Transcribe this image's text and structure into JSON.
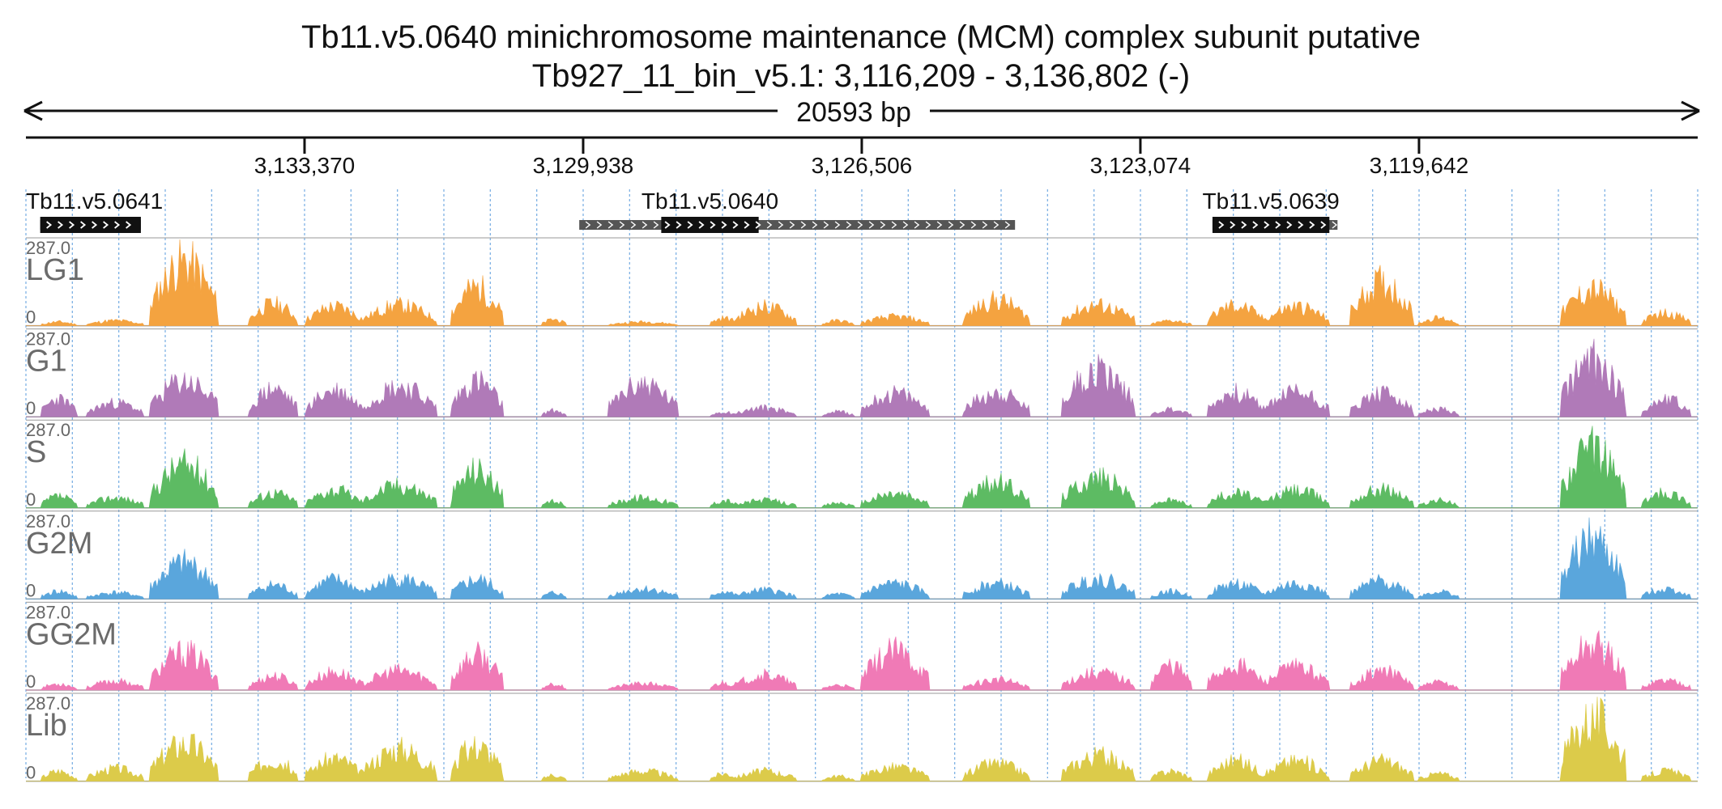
{
  "chart_data": {
    "type": "area",
    "title": "Tb11.v5.0640  minichromosome maintenance (MCM) complex subunit  putative",
    "subtitle": "Tb927_11_bin_v5.1: 3,116,209 - 3,136,802 (-)",
    "span_label": "20593 bp",
    "region": {
      "chrom": "Tb927_11_bin_v5.1",
      "start": 3116209,
      "end": 3136802,
      "strand": "-"
    },
    "x_ticks": [
      "3,133,370",
      "3,129,938",
      "3,126,506",
      "3,123,074",
      "3,119,642"
    ],
    "genes": [
      {
        "name": "Tb11.v5.0641",
        "start": 3135386,
        "end": 3136626,
        "utr_start": 3135386,
        "utr_end": 3136626
      },
      {
        "name": "Tb11.v5.0640",
        "start": 3127776,
        "end": 3128976,
        "utr_start": 3124618,
        "utr_end": 3129986
      },
      {
        "name": "Tb11.v5.0639",
        "start": 3120746,
        "end": 3122186,
        "utr_start": 3120646,
        "utr_end": 3122186
      }
    ],
    "tracks": [
      {
        "name": "LG1",
        "max": "287.0",
        "min": "0",
        "color": "#f4a340",
        "seed": 11
      },
      {
        "name": "G1",
        "max": "287.0",
        "min": "0",
        "color": "#b07ab8",
        "seed": 23
      },
      {
        "name": "S",
        "max": "287.0",
        "min": "0",
        "color": "#5dbb63",
        "seed": 37
      },
      {
        "name": "G2M",
        "max": "287.0",
        "min": "0",
        "color": "#5aa6dc",
        "seed": 41
      },
      {
        "name": "GG2M",
        "max": "287.0",
        "min": "0",
        "color": "#f07ab6",
        "seed": 53
      },
      {
        "name": "Lib",
        "max": "287.0",
        "min": "0",
        "color": "#dccb4a",
        "seed": 67
      }
    ],
    "peaks": [
      {
        "center": 3136400,
        "width": 220,
        "heights": [
          15,
          70,
          45,
          30,
          25,
          40
        ]
      },
      {
        "center": 3135700,
        "width": 350,
        "heights": [
          20,
          55,
          40,
          25,
          35,
          50
        ]
      },
      {
        "center": 3134850,
        "width": 420,
        "heights": [
          250,
          140,
          170,
          140,
          145,
          150
        ]
      },
      {
        "center": 3133750,
        "width": 300,
        "heights": [
          85,
          110,
          60,
          55,
          55,
          85
        ]
      },
      {
        "center": 3133000,
        "width": 350,
        "heights": [
          75,
          105,
          70,
          75,
          70,
          90
        ]
      },
      {
        "center": 3132200,
        "width": 450,
        "heights": [
          80,
          120,
          90,
          80,
          75,
          130
        ]
      },
      {
        "center": 3131250,
        "width": 320,
        "heights": [
          150,
          140,
          150,
          75,
          135,
          140
        ]
      },
      {
        "center": 3130300,
        "width": 150,
        "heights": [
          25,
          25,
          25,
          25,
          25,
          25
        ]
      },
      {
        "center": 3129200,
        "width": 420,
        "heights": [
          15,
          130,
          40,
          40,
          25,
          40
        ]
      },
      {
        "center": 3128200,
        "width": 180,
        "heights": [
          30,
          20,
          30,
          30,
          30,
          30
        ]
      },
      {
        "center": 3127700,
        "width": 380,
        "heights": [
          75,
          35,
          30,
          35,
          60,
          40
        ]
      },
      {
        "center": 3126800,
        "width": 200,
        "heights": [
          20,
          20,
          20,
          20,
          20,
          20
        ]
      },
      {
        "center": 3126100,
        "width": 420,
        "heights": [
          35,
          90,
          55,
          60,
          150,
          55
        ]
      },
      {
        "center": 3124850,
        "width": 400,
        "heights": [
          100,
          95,
          100,
          60,
          40,
          70
        ]
      },
      {
        "center": 3123600,
        "width": 450,
        "heights": [
          80,
          185,
          120,
          80,
          70,
          100
        ]
      },
      {
        "center": 3122700,
        "width": 250,
        "heights": [
          20,
          30,
          30,
          30,
          100,
          40
        ]
      },
      {
        "center": 3121900,
        "width": 350,
        "heights": [
          80,
          95,
          60,
          60,
          100,
          80
        ]
      },
      {
        "center": 3121150,
        "width": 400,
        "heights": [
          75,
          100,
          70,
          60,
          90,
          80
        ]
      },
      {
        "center": 3120100,
        "width": 380,
        "heights": [
          170,
          90,
          75,
          70,
          75,
          80
        ]
      },
      {
        "center": 3119400,
        "width": 250,
        "heights": [
          30,
          30,
          30,
          30,
          30,
          30
        ]
      },
      {
        "center": 3117500,
        "width": 400,
        "heights": [
          140,
          220,
          230,
          230,
          180,
          250
        ]
      },
      {
        "center": 3116600,
        "width": 300,
        "heights": [
          50,
          70,
          60,
          40,
          40,
          40
        ]
      }
    ]
  }
}
